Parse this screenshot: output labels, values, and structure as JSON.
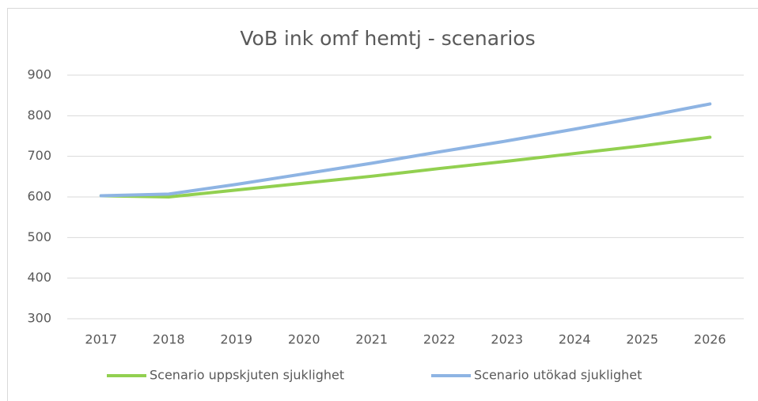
{
  "chart_data": {
    "type": "line",
    "title": "VoB ink omf hemtj - scenarios",
    "categories": [
      "2017",
      "2018",
      "2019",
      "2020",
      "2021",
      "2022",
      "2023",
      "2024",
      "2025",
      "2026"
    ],
    "series": [
      {
        "name": "Scenario uppskjuten sjuklighet",
        "color": "#92d050",
        "values": [
          603,
          600,
          617,
          634,
          651,
          670,
          688,
          707,
          726,
          747
        ]
      },
      {
        "name": "Scenario utökad sjuklighet",
        "color": "#8eb4e3",
        "values": [
          603,
          607,
          631,
          657,
          683,
          711,
          738,
          767,
          797,
          829
        ]
      }
    ],
    "ylim": [
      300,
      900
    ],
    "yticks": [
      300,
      400,
      500,
      600,
      700,
      800,
      900
    ],
    "grid": true,
    "legend": "bottom"
  }
}
